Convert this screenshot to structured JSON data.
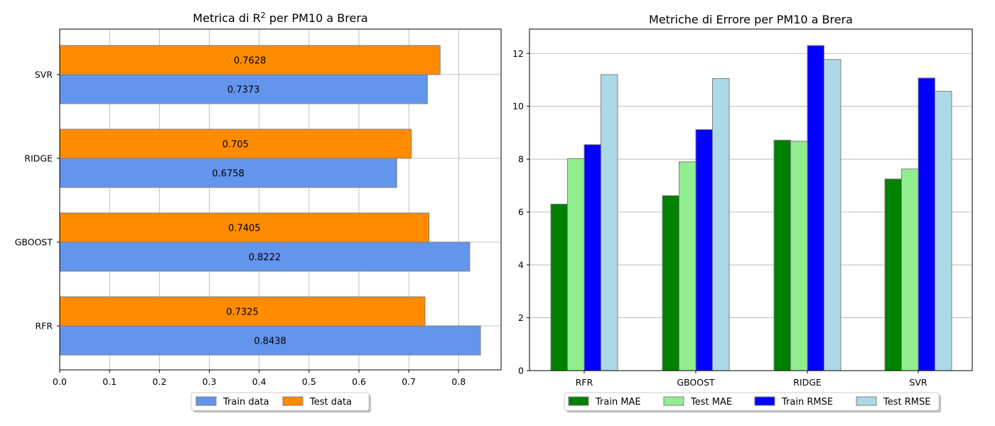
{
  "chart_data": [
    {
      "type": "bar",
      "orientation": "horizontal",
      "title_main": "Metrica di R",
      "title_sup": "2",
      "title_rest": " per PM10 a Brera",
      "categories": [
        "RFR",
        "GBOOST",
        "RIDGE",
        "SVR"
      ],
      "series": [
        {
          "name": "Train data",
          "color": "#6495ed",
          "values": [
            0.8438,
            0.8222,
            0.6758,
            0.7373
          ],
          "labels": [
            "0.8438",
            "0.8222",
            "0.6758",
            "0.7373"
          ]
        },
        {
          "name": "Test data",
          "color": "#ff8c00",
          "values": [
            0.7325,
            0.7405,
            0.705,
            0.7628
          ],
          "labels": [
            "0.7325",
            "0.7405",
            "0.705",
            "0.7628"
          ]
        }
      ],
      "xlim": [
        0,
        0.885
      ],
      "xticks": [
        0.0,
        0.1,
        0.2,
        0.3,
        0.4,
        0.5,
        0.6,
        0.7,
        0.8
      ],
      "xtick_labels": [
        "0.0",
        "0.1",
        "0.2",
        "0.3",
        "0.4",
        "0.5",
        "0.6",
        "0.7",
        "0.8"
      ],
      "grid": true,
      "legend_position": "bottom-center"
    },
    {
      "type": "bar",
      "orientation": "vertical",
      "title": "Metriche di Errore per PM10 a Brera",
      "categories": [
        "RFR",
        "GBOOST",
        "RIDGE",
        "SVR"
      ],
      "series": [
        {
          "name": "Train MAE",
          "color": "#008000",
          "values": [
            6.3,
            6.62,
            8.72,
            7.25
          ]
        },
        {
          "name": "Test MAE",
          "color": "#90ee90",
          "values": [
            8.02,
            7.9,
            8.68,
            7.63
          ]
        },
        {
          "name": "Train RMSE",
          "color": "#0000ff",
          "values": [
            8.55,
            9.12,
            12.3,
            11.07
          ]
        },
        {
          "name": "Test RMSE",
          "color": "#add8e6",
          "values": [
            11.2,
            11.05,
            11.77,
            10.57
          ]
        }
      ],
      "ylim": [
        0,
        12.92
      ],
      "yticks": [
        0,
        2,
        4,
        6,
        8,
        10,
        12
      ],
      "ytick_labels": [
        "0",
        "2",
        "4",
        "6",
        "8",
        "10",
        "12"
      ],
      "grid": true,
      "legend_position": "bottom-center"
    }
  ]
}
